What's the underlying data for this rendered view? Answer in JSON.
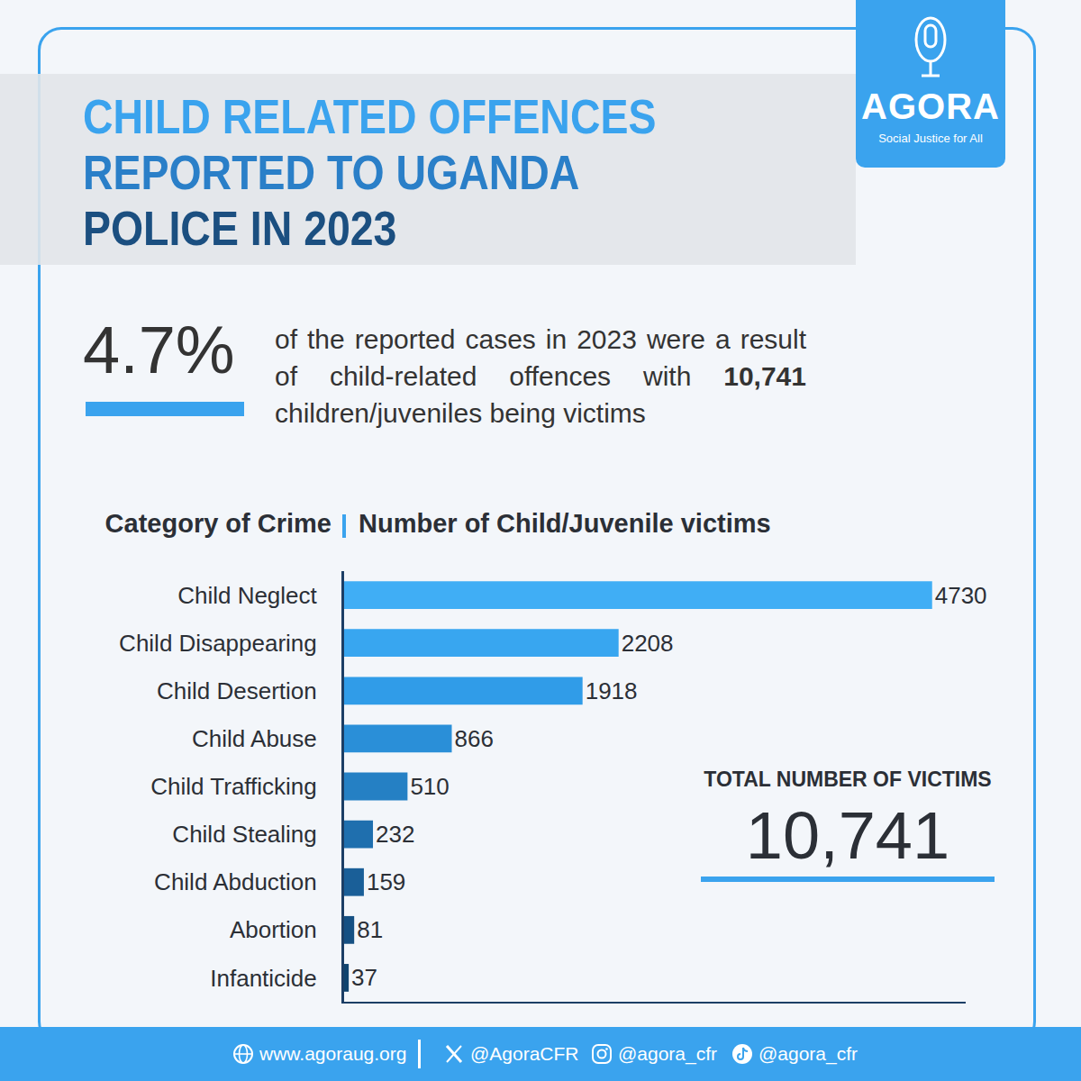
{
  "brand": {
    "name": "AGORA",
    "tagline": "Social Justice for All"
  },
  "title": [
    "CHILD RELATED OFFENCES",
    "REPORTED TO UGANDA",
    "POLICE IN 2023"
  ],
  "summary": {
    "stat": "4.7%",
    "text": "of the reported cases in 2023 were a result of child-related offences with",
    "bold": "10,741",
    "text_end": "children/juveniles being victims"
  },
  "chart_data": {
    "type": "bar",
    "orientation": "horizontal",
    "ylabel": "Category of Crime",
    "xlabel": "Number of Child/Juvenile victims",
    "categories": [
      "Child Neglect",
      "Child Disappearing",
      "Child Desertion",
      "Child Abuse",
      "Child Trafficking",
      "Child Stealing",
      "Child Abduction",
      "Abortion",
      "Infanticide"
    ],
    "values": [
      4730,
      2208,
      1918,
      866,
      510,
      232,
      159,
      81,
      37
    ],
    "colors": [
      "#40aef5",
      "#38a6f0",
      "#309ce8",
      "#2a8fd8",
      "#2580c4",
      "#1f6fae",
      "#1a5f98",
      "#155083",
      "#10446f"
    ],
    "xlim": [
      0,
      5000
    ],
    "data_labels": true,
    "tick_labels": "y",
    "grid": false
  },
  "total": {
    "label": "TOTAL NUMBER OF VICTIMS",
    "value": "10,741"
  },
  "footer": [
    "www.agoraug.org",
    "@AgoraCFR",
    "@agora_cfr",
    "@agora_cfr"
  ]
}
